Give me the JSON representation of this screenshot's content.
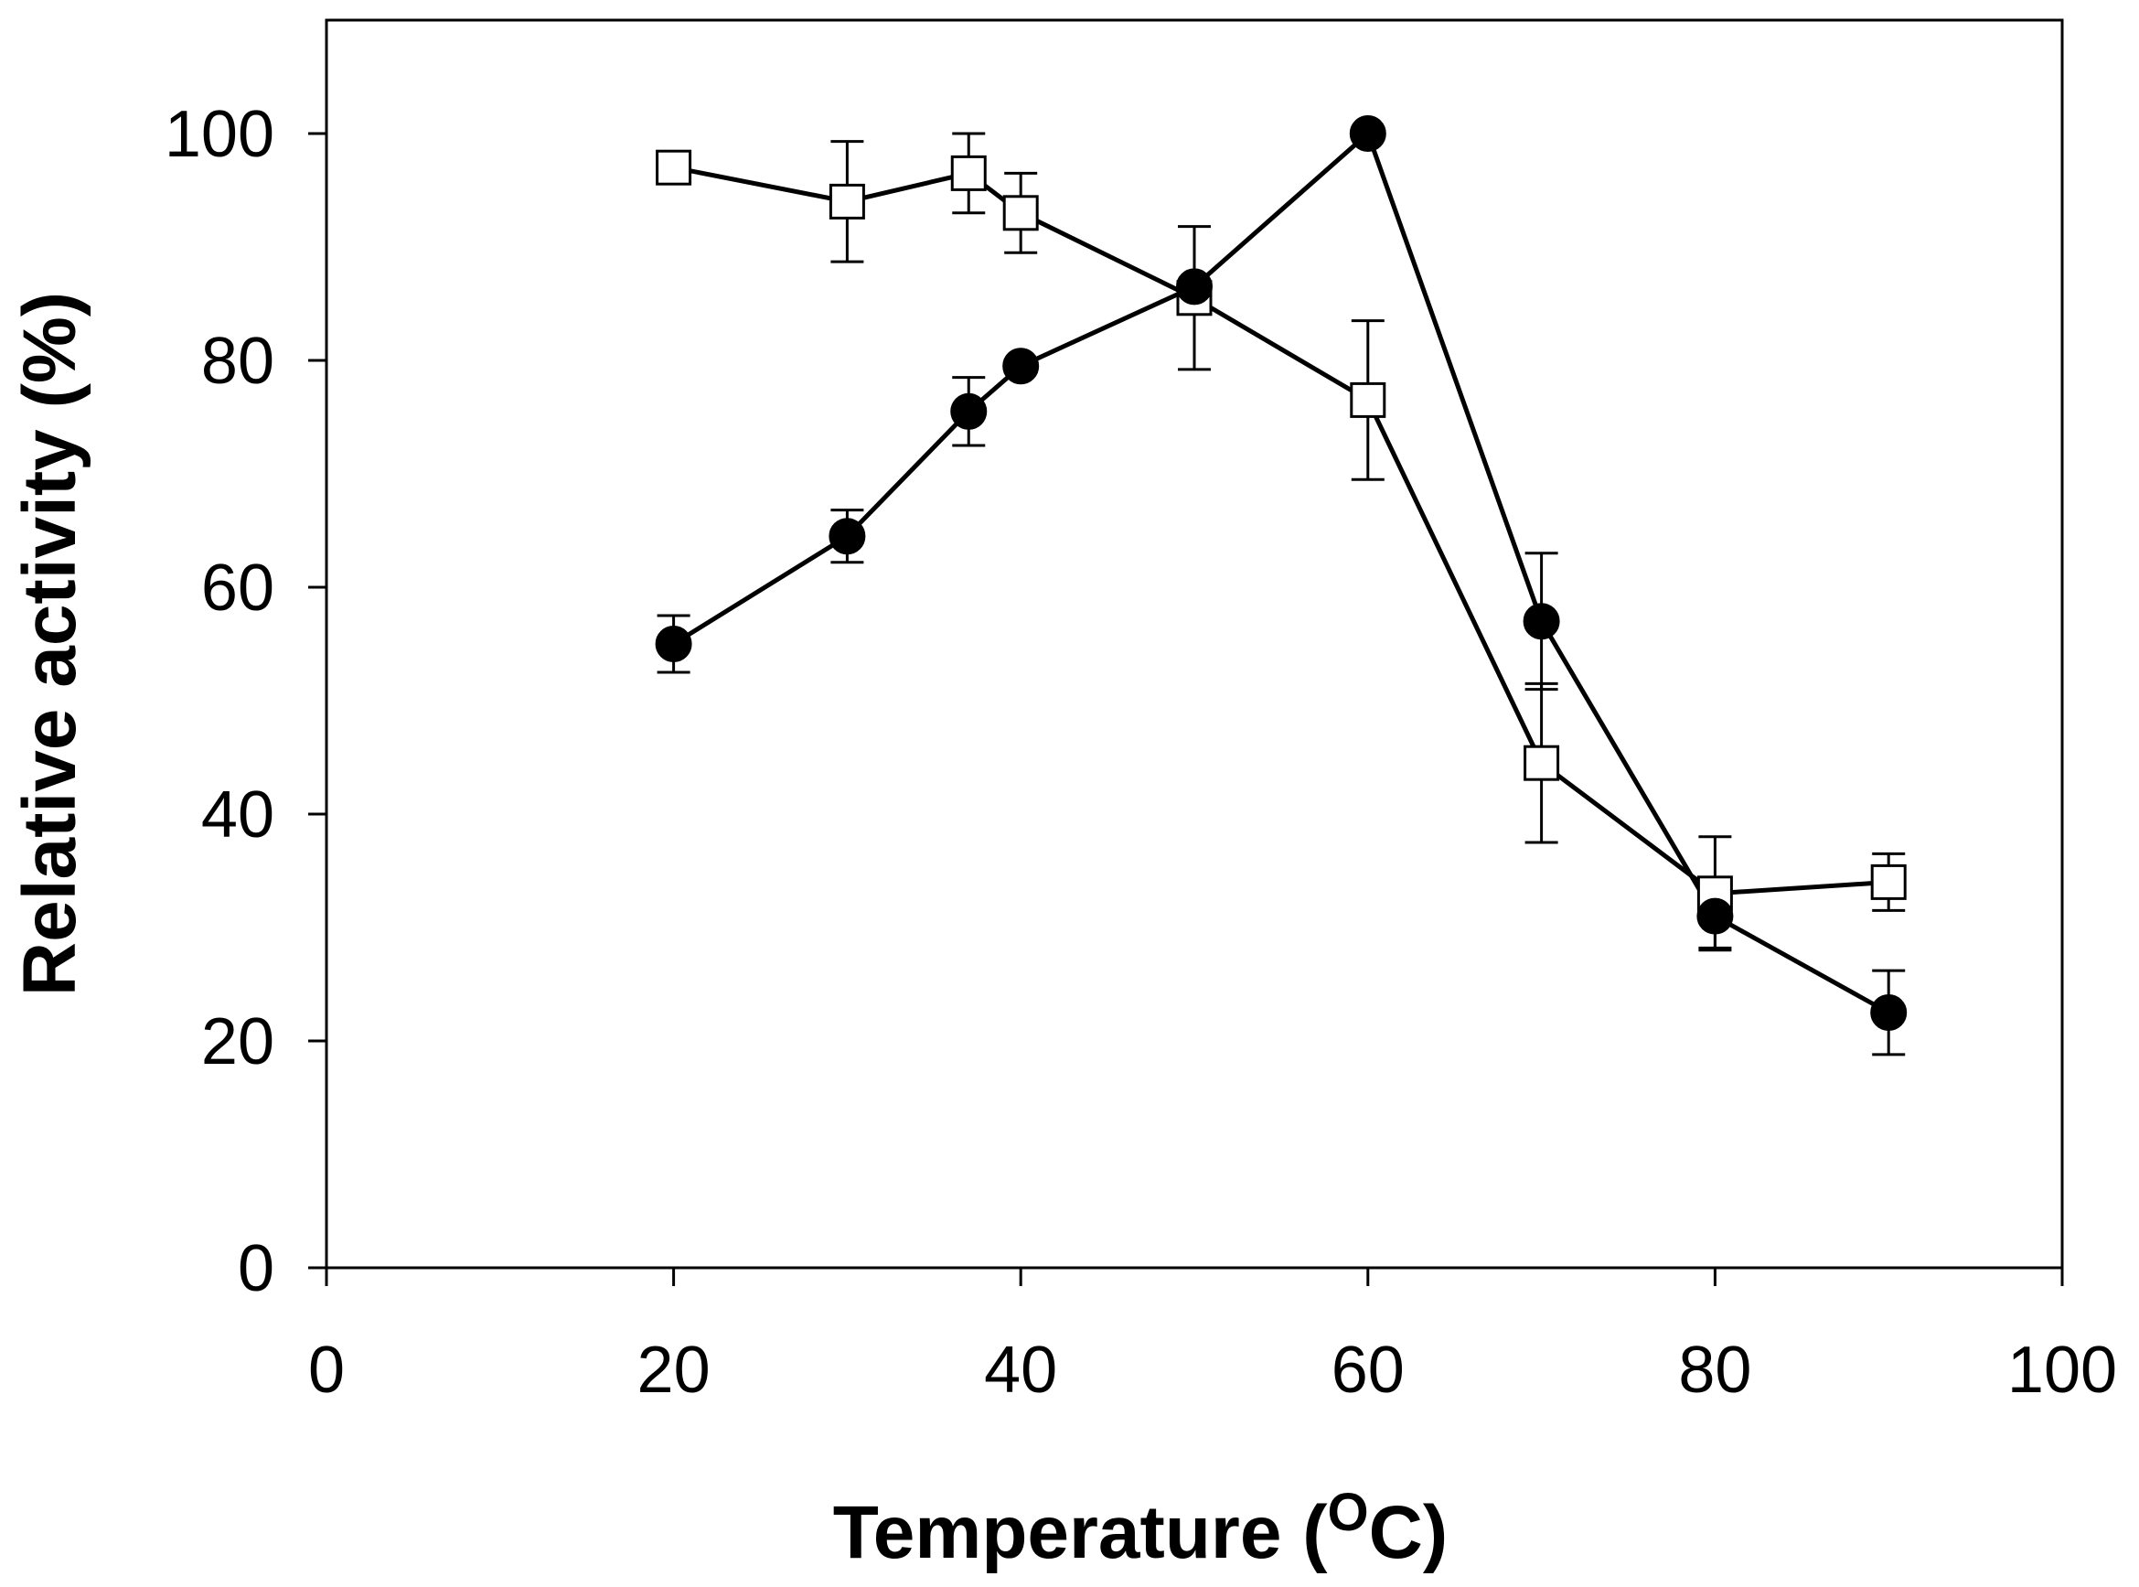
{
  "chart_data": {
    "type": "line",
    "title": "",
    "xlabel": {
      "main": "Temperature (",
      "sup": "O",
      "unit": "C)"
    },
    "ylabel": "Relative activity (%)",
    "xlim": [
      0,
      100
    ],
    "ylim": [
      0,
      110
    ],
    "xticks": [
      0,
      20,
      40,
      60,
      80,
      100
    ],
    "yticks": [
      0,
      20,
      40,
      60,
      80,
      100
    ],
    "grid": false,
    "legend": null,
    "series": [
      {
        "name": "filled circles",
        "marker": "circle",
        "fill": "#000000",
        "x": [
          20,
          30,
          37,
          40,
          50,
          60,
          70,
          80,
          90
        ],
        "y": [
          55,
          64.5,
          75.5,
          79.5,
          86.5,
          100,
          57,
          31,
          22.5
        ],
        "err": [
          2.5,
          2.3,
          3.0,
          0,
          0,
          0,
          6.0,
          2.8,
          3.7
        ]
      },
      {
        "name": "open squares",
        "marker": "square",
        "fill": "#ffffff",
        "x": [
          20,
          30,
          37,
          40,
          50,
          60,
          70,
          80,
          90
        ],
        "y": [
          97,
          94,
          96.5,
          93,
          85.5,
          76.5,
          44.5,
          33,
          34
        ],
        "err": [
          0,
          5.3,
          3.5,
          3.5,
          6.3,
          7.0,
          7.0,
          5.0,
          2.5
        ]
      }
    ]
  }
}
